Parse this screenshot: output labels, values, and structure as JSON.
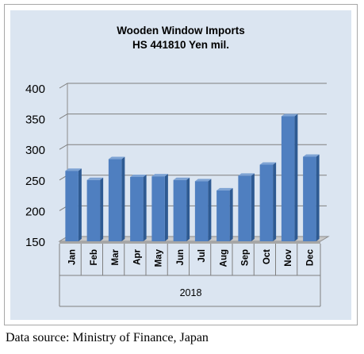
{
  "chart_data": {
    "type": "bar",
    "title": "Wooden Window Imports",
    "subtitle": "HS 441810 Yen mil.",
    "categories": [
      "Jan",
      "Feb",
      "Mar",
      "Apr",
      "May",
      "Jun",
      "Jul",
      "Aug",
      "Sep",
      "Oct",
      "Nov",
      "Dec"
    ],
    "values": [
      265,
      250,
      284,
      255,
      256,
      250,
      248,
      233,
      257,
      275,
      354,
      288
    ],
    "group_label": "2018",
    "y_ticks": [
      150,
      200,
      250,
      300,
      350,
      400
    ],
    "ylim": [
      150,
      400
    ],
    "grid": true,
    "legend": "none",
    "colors": {
      "bar_front": "#4f7fc0",
      "bar_side": "#2e5a92",
      "bar_top": "#7ea3d4",
      "panel": "#dbe5f1"
    }
  },
  "caption": "Data source: Ministry of Finance, Japan"
}
